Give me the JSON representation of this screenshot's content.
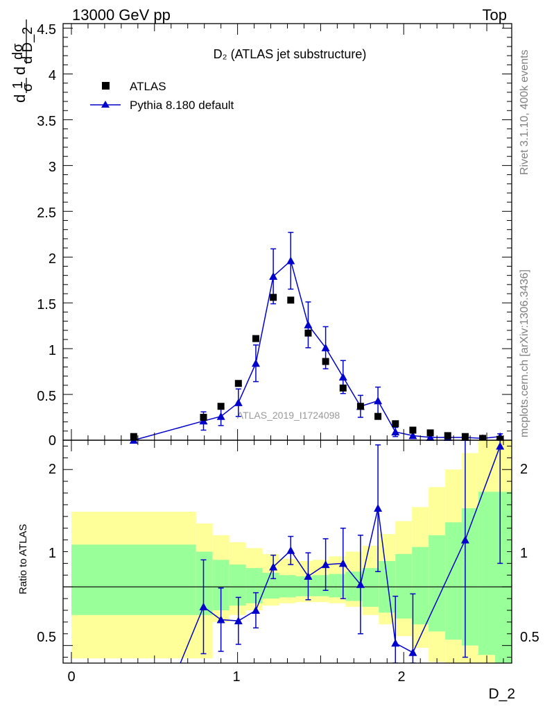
{
  "header": {
    "left": "13000 GeV pp",
    "right": "Top"
  },
  "side_labels": {
    "rivet": "Rivet 3.1.10,  400k events",
    "mcplots": "mcplots.cern.ch [arXiv:1306.3436]"
  },
  "colors": {
    "atlas": "#000000",
    "pythia": "#0000cc",
    "band_inner": "#99ff99",
    "band_outer": "#ffff99"
  },
  "chart_data": [
    {
      "type": "scatter",
      "title": "D₂ (ATLAS jet substructure)",
      "watermark": "ATLAS_2019_I1724098",
      "ylabel_parts": {
        "fraction1_num": "1",
        "fraction1_den": "σ",
        "fraction2_num": "dσ",
        "fraction2_den": "d D_2",
        "prefix": "d"
      },
      "xlim": [
        -0.05,
        2.65
      ],
      "ylim": [
        0,
        4.55
      ],
      "yticks": [
        "0",
        "0.5",
        "1",
        "1.5",
        "2",
        "2.5",
        "3",
        "3.5",
        "4",
        "4.5"
      ],
      "legend_placement": "top-left",
      "series": [
        {
          "name": "ATLAS",
          "marker": "square",
          "x": [
            0.375,
            0.795,
            0.9,
            1.005,
            1.11,
            1.215,
            1.32,
            1.425,
            1.53,
            1.635,
            1.74,
            1.845,
            1.95,
            2.055,
            2.16,
            2.265,
            2.37,
            2.475,
            2.58
          ],
          "y": [
            0.04,
            0.25,
            0.37,
            0.62,
            1.11,
            1.56,
            1.53,
            1.17,
            0.86,
            0.57,
            0.37,
            0.26,
            0.18,
            0.11,
            0.08,
            0.05,
            0.04,
            0.02,
            0.01
          ]
        },
        {
          "name": "Pythia 8.180 default",
          "marker": "triangle",
          "line": true,
          "x": [
            0.375,
            0.795,
            0.9,
            1.005,
            1.11,
            1.215,
            1.32,
            1.425,
            1.53,
            1.635,
            1.74,
            1.845,
            1.95,
            2.055,
            2.16,
            2.265,
            2.37,
            2.475,
            2.58
          ],
          "y": [
            0.0,
            0.21,
            0.26,
            0.41,
            0.84,
            1.79,
            1.96,
            1.26,
            1.01,
            0.69,
            0.37,
            0.43,
            0.09,
            0.05,
            0.03,
            0.03,
            0.03,
            0.02,
            0.04
          ],
          "yerr": [
            0.0,
            0.1,
            0.1,
            0.15,
            0.2,
            0.3,
            0.31,
            0.25,
            0.23,
            0.18,
            0.12,
            0.15,
            0.05,
            0.03,
            0.02,
            0.02,
            0.02,
            0.02,
            0.03
          ]
        }
      ]
    },
    {
      "type": "scatter",
      "title": "",
      "ylabel": "Ratio to ATLAS",
      "xlabel": "D_2",
      "xlim": [
        -0.05,
        2.65
      ],
      "ylim": [
        0.35,
        2.25
      ],
      "xticks": [
        "0",
        "1",
        "2"
      ],
      "yticks": [
        "0.5",
        "1",
        "2"
      ],
      "reference_line": 1,
      "band_edges": [
        0.0,
        0.75,
        0.85,
        0.95,
        1.05,
        1.15,
        1.25,
        1.35,
        1.45,
        1.55,
        1.65,
        1.75,
        1.85,
        1.95,
        2.05,
        2.15,
        2.25,
        2.35,
        2.45,
        2.55,
        2.65
      ],
      "band_inner": {
        "lo": [
          0.76,
          0.76,
          0.8,
          0.84,
          0.86,
          0.9,
          0.91,
          0.92,
          0.92,
          0.91,
          0.88,
          0.83,
          0.78,
          0.73,
          0.68,
          0.62,
          0.55,
          0.5,
          0.42,
          0.35
        ],
        "hi": [
          1.36,
          1.3,
          1.23,
          1.19,
          1.16,
          1.12,
          1.1,
          1.09,
          1.1,
          1.11,
          1.13,
          1.16,
          1.22,
          1.28,
          1.34,
          1.44,
          1.55,
          1.67,
          1.81,
          1.81
        ]
      },
      "band_outer": {
        "lo": [
          0.39,
          0.39,
          0.7,
          0.76,
          0.8,
          0.84,
          0.86,
          0.87,
          0.87,
          0.86,
          0.83,
          0.76,
          0.68,
          0.58,
          0.48,
          0.36,
          0.35,
          0.35,
          0.35,
          0.35
        ],
        "hi": [
          1.64,
          1.54,
          1.44,
          1.38,
          1.33,
          1.28,
          1.24,
          1.22,
          1.23,
          1.26,
          1.3,
          1.35,
          1.45,
          1.56,
          1.68,
          1.85,
          2.0,
          2.14,
          2.25,
          2.25
        ]
      },
      "series": [
        {
          "name": "Pythia 8.180 default",
          "marker": "triangle",
          "line": true,
          "x": [
            0.795,
            0.9,
            1.005,
            1.11,
            1.215,
            1.32,
            1.425,
            1.53,
            1.635,
            1.74,
            1.845,
            1.95,
            2.055,
            2.37,
            2.58
          ],
          "y": [
            0.83,
            0.72,
            0.71,
            0.8,
            1.17,
            1.31,
            1.09,
            1.19,
            1.2,
            1.02,
            1.67,
            0.52,
            0.44,
            1.4,
            2.2
          ],
          "yerr": [
            0.4,
            0.27,
            0.2,
            0.15,
            0.1,
            0.12,
            0.2,
            0.22,
            0.3,
            0.42,
            0.54,
            0.4,
            0.5,
            1.0,
            1.0
          ],
          "line_start": [
            0.65,
            0.33
          ]
        }
      ]
    }
  ]
}
